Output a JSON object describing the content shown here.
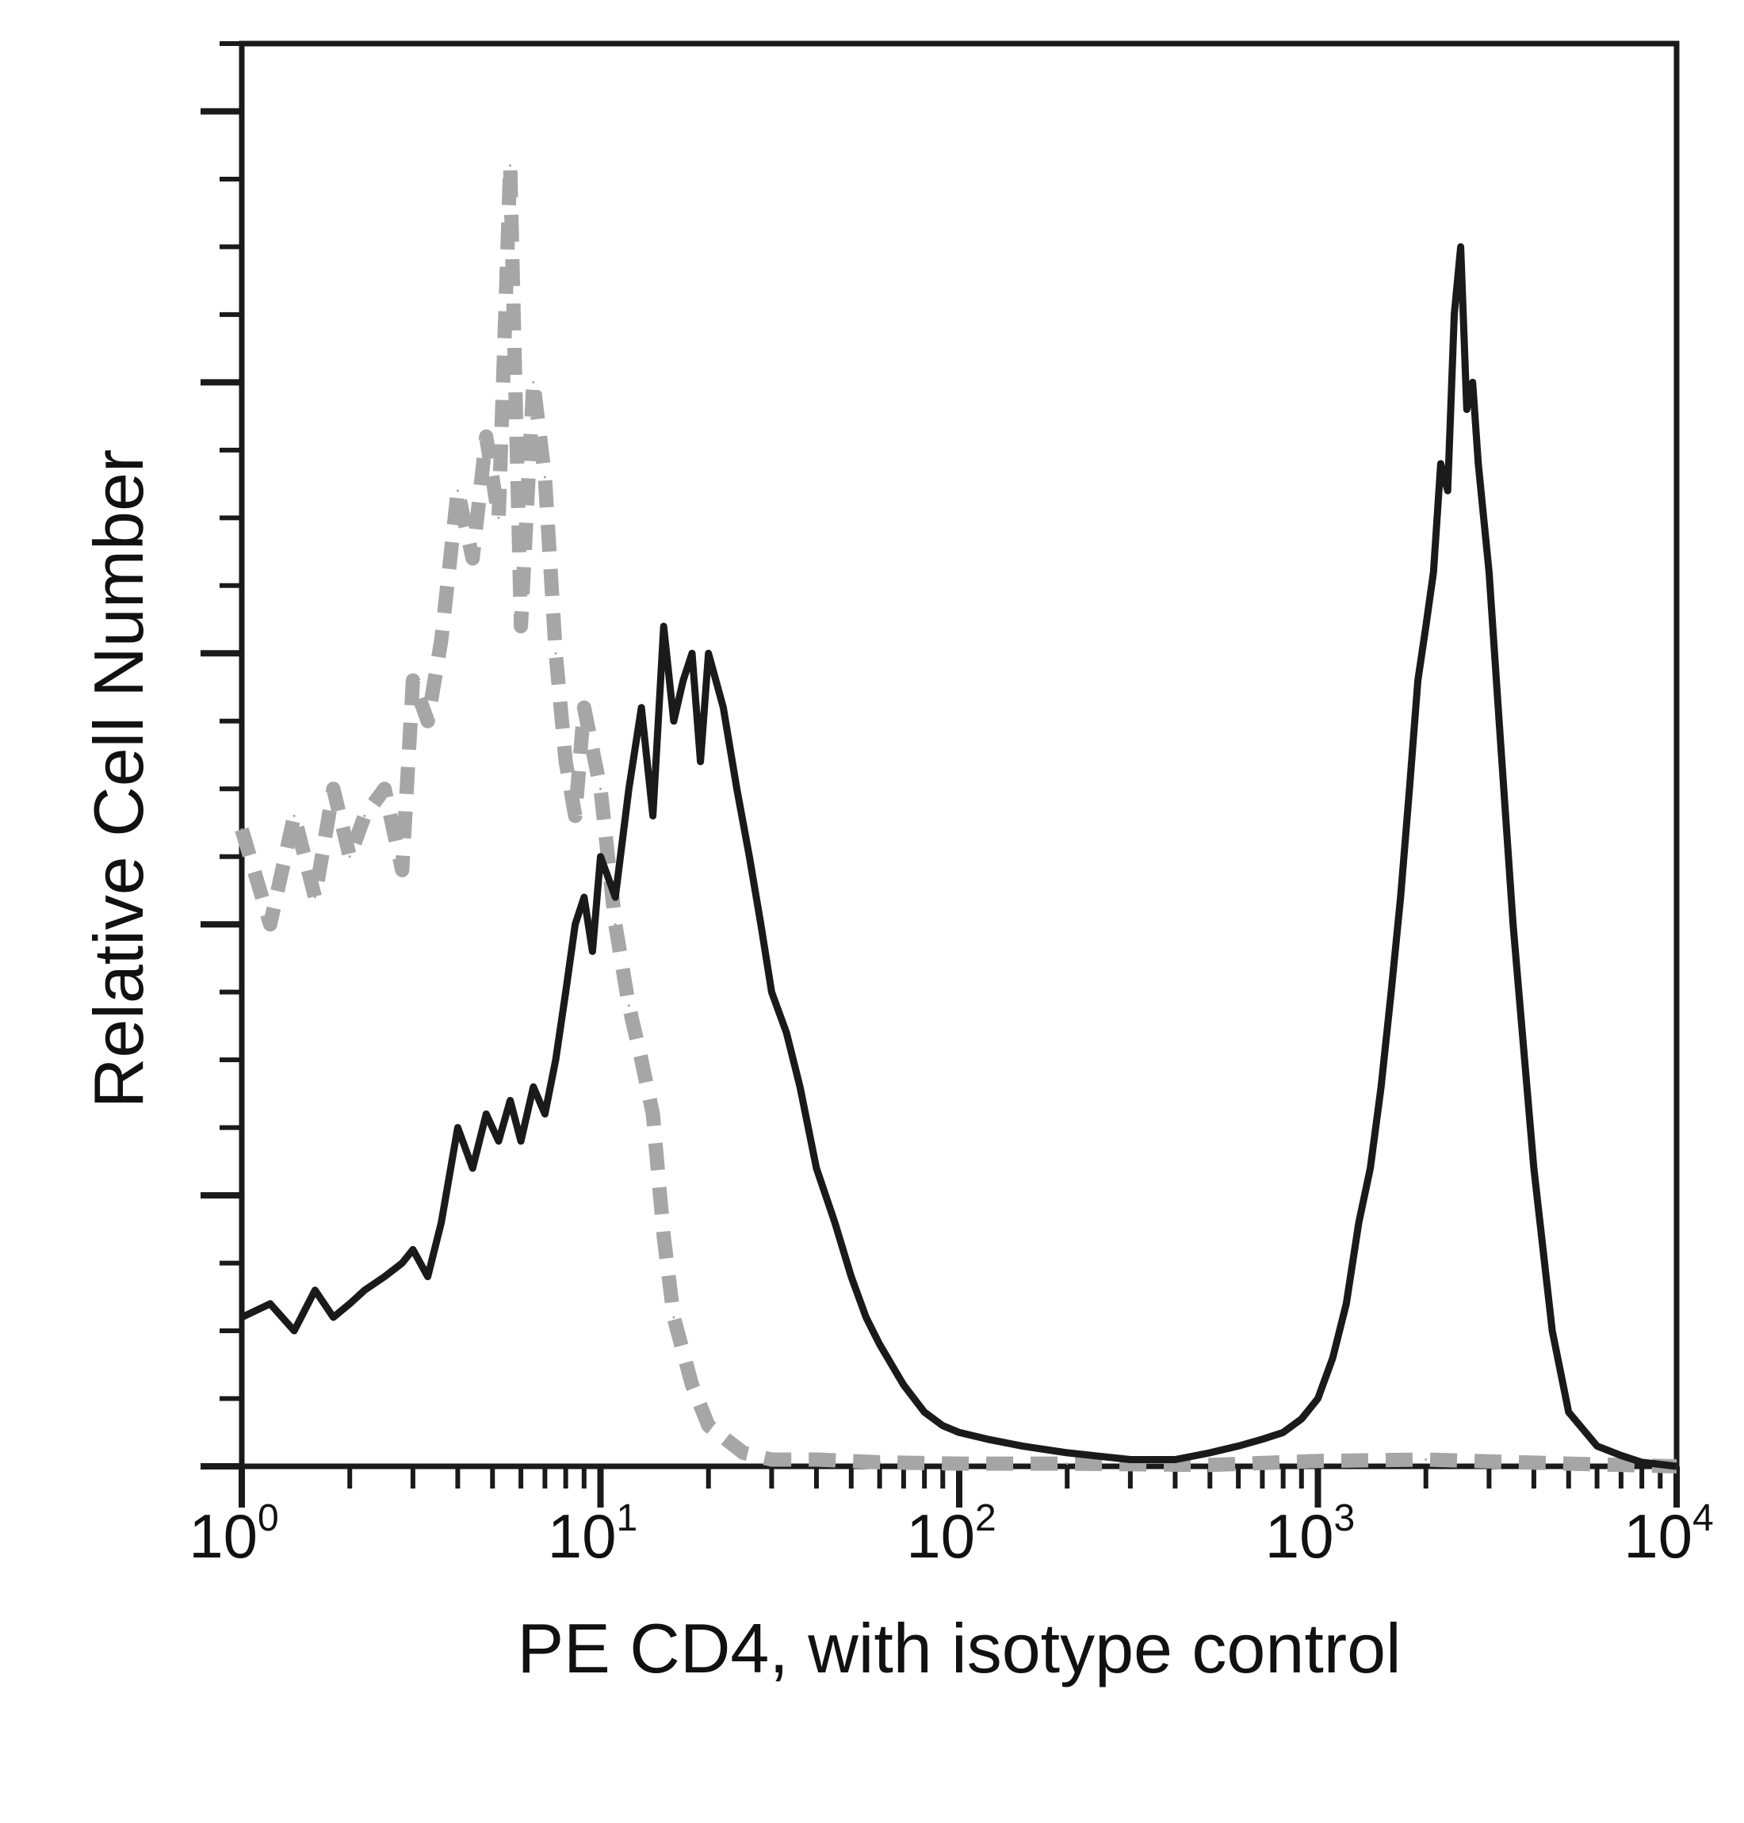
{
  "chart_data": {
    "type": "line",
    "xlabel": "PE CD4, with isotype control",
    "ylabel": "Relative Cell Number",
    "x_scale": "log",
    "xlim": [
      1,
      10000
    ],
    "ylim": [
      0,
      105
    ],
    "x_ticks": [
      {
        "base": "10",
        "exp": "0",
        "value": 1
      },
      {
        "base": "10",
        "exp": "1",
        "value": 10
      },
      {
        "base": "10",
        "exp": "2",
        "value": 100
      },
      {
        "base": "10",
        "exp": "3",
        "value": 1000
      },
      {
        "base": "10",
        "exp": "4",
        "value": 10000
      }
    ],
    "y_major_ticks": [
      0,
      20,
      40,
      60,
      80,
      100
    ],
    "y_minor_step": 5,
    "grid": false,
    "legend": "none",
    "series": [
      {
        "color": "#a6a6a6",
        "style": "dashed",
        "x": [
          1,
          1.2,
          1.4,
          1.6,
          1.8,
          2.0,
          2.2,
          2.5,
          2.8,
          3.0,
          3.3,
          3.6,
          4.0,
          4.4,
          4.8,
          5.2,
          5.6,
          6.0,
          6.5,
          7.0,
          7.5,
          8.0,
          8.5,
          9.0,
          10,
          11,
          12,
          13,
          14,
          15,
          16,
          18,
          20,
          25,
          30,
          40,
          60,
          100,
          200,
          500,
          1000,
          2000,
          5000,
          10000
        ],
        "y": [
          47,
          40,
          48,
          42,
          50,
          45,
          48,
          50,
          44,
          58,
          55,
          61,
          72,
          67,
          76,
          70,
          96,
          62,
          80,
          73,
          60,
          52,
          48,
          56,
          50,
          40,
          34,
          30,
          26,
          17,
          11,
          6,
          3,
          1,
          0.5,
          0.5,
          0.3,
          0.2,
          0.2,
          0.1,
          0.4,
          0.5,
          0.2,
          0
        ]
      },
      {
        "color": "#1a1a1a",
        "style": "solid",
        "x": [
          1,
          1.2,
          1.4,
          1.6,
          1.8,
          2.0,
          2.2,
          2.5,
          2.8,
          3.0,
          3.3,
          3.6,
          4.0,
          4.4,
          4.8,
          5.2,
          5.6,
          6.0,
          6.5,
          7.0,
          7.5,
          8.0,
          8.5,
          9.0,
          9.5,
          10,
          11,
          12,
          13,
          14,
          15,
          16,
          17,
          18,
          19,
          20,
          22,
          24,
          26,
          28,
          30,
          33,
          36,
          40,
          45,
          50,
          55,
          60,
          70,
          80,
          90,
          100,
          120,
          150,
          200,
          300,
          400,
          500,
          600,
          700,
          800,
          900,
          1000,
          1100,
          1200,
          1300,
          1400,
          1500,
          1600,
          1700,
          1800,
          1900,
          2000,
          2100,
          2200,
          2300,
          2400,
          2500,
          2600,
          2700,
          2800,
          3000,
          3200,
          3500,
          4000,
          4500,
          5000,
          6000,
          7000,
          8000,
          10000
        ],
        "y": [
          11,
          12,
          10,
          13,
          11,
          12,
          13,
          14,
          15,
          16,
          14,
          18,
          25,
          22,
          26,
          24,
          27,
          24,
          28,
          26,
          30,
          35,
          40,
          42,
          38,
          45,
          42,
          50,
          56,
          48,
          62,
          55,
          58,
          60,
          52,
          60,
          56,
          50,
          45,
          40,
          35,
          32,
          28,
          22,
          18,
          14,
          11,
          9,
          6,
          4,
          3,
          2.5,
          2,
          1.5,
          1,
          0.5,
          0.5,
          1,
          1.5,
          2,
          2.5,
          3.5,
          5,
          8,
          12,
          18,
          22,
          28,
          35,
          42,
          50,
          58,
          62,
          66,
          74,
          72,
          85,
          90,
          78,
          80,
          74,
          66,
          55,
          40,
          22,
          10,
          4,
          1.5,
          0.8,
          0.3,
          0
        ]
      }
    ]
  }
}
